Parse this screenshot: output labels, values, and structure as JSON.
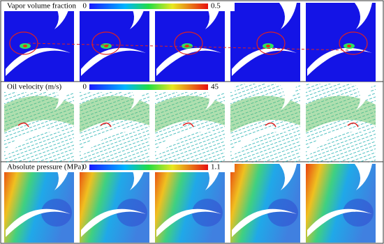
{
  "panels": [
    {
      "title": "Vapor volume fraction",
      "scale": [
        0,
        0.5
      ]
    },
    {
      "title": "Oil velocity (m/s)",
      "scale": [
        0,
        45
      ]
    },
    {
      "title": "Absolute pressure (MPa)",
      "scale": [
        0,
        1.1
      ]
    }
  ]
}
